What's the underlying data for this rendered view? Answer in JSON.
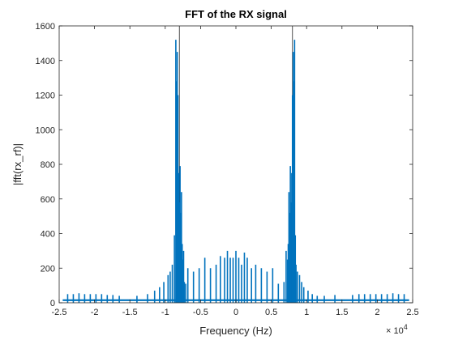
{
  "chart_data": {
    "type": "line",
    "title": "FFT of the RX signal",
    "xlabel": "Frequency (Hz)",
    "ylabel": "|fft(rx_rf)|",
    "x_exponent_label": "× 10",
    "x_exponent_power": "4",
    "x_tick_labels": [
      "-2.5",
      "-2",
      "-1.5",
      "-1",
      "-0.5",
      "0",
      "0.5",
      "1",
      "1.5",
      "2",
      "2.5"
    ],
    "x_ticks": [
      -25000,
      -20000,
      -15000,
      -10000,
      -5000,
      0,
      5000,
      10000,
      15000,
      20000,
      25000
    ],
    "y_tick_labels": [
      "0",
      "200",
      "400",
      "600",
      "800",
      "1000",
      "1200",
      "1400",
      "1600"
    ],
    "y_ticks": [
      0,
      200,
      400,
      600,
      800,
      1000,
      1200,
      1400,
      1600
    ],
    "xlim": [
      -25000,
      25000
    ],
    "ylim": [
      0,
      1600
    ],
    "grid": false,
    "line_color": "#0072BD",
    "carrier_lines": [
      -8000,
      8000
    ],
    "noise_floor": 15,
    "series": [
      {
        "x": [
          -23800,
          -23000,
          -22200,
          -21400,
          -20600,
          -19800,
          -19000,
          -18200,
          -17400,
          -16500,
          -14000,
          -12500,
          -11500,
          -10800,
          -10200,
          -9600,
          -9300,
          -9000,
          -8700,
          -8500,
          -8400,
          -8300,
          -8200,
          -8100,
          -8000,
          -7900,
          -7800,
          -7700,
          -7600,
          -7500,
          -7400,
          -7300,
          -7100,
          -6800,
          -6000,
          -5200,
          -4400,
          -3600,
          -2800,
          -2200,
          -1600,
          -1200,
          -800,
          -400,
          0,
          400,
          800,
          1200,
          1600,
          2200,
          2800,
          3600,
          4400,
          5200,
          6000,
          6800,
          7100,
          7300,
          7400,
          7500,
          7600,
          7700,
          7800,
          7900,
          8000,
          8100,
          8200,
          8300,
          8400,
          8500,
          8700,
          9000,
          9300,
          9600,
          10200,
          10800,
          11500,
          12500,
          14000,
          16500,
          17400,
          18200,
          19000,
          19800,
          20600,
          21400,
          22200,
          23000,
          23800
        ],
        "y": [
          50,
          50,
          55,
          50,
          50,
          50,
          50,
          45,
          45,
          40,
          40,
          50,
          70,
          90,
          120,
          160,
          180,
          220,
          390,
          1520,
          1280,
          1450,
          1200,
          750,
          580,
          790,
          520,
          640,
          340,
          250,
          300,
          120,
          110,
          200,
          180,
          200,
          260,
          200,
          220,
          270,
          260,
          300,
          260,
          260,
          300,
          260,
          220,
          290,
          260,
          200,
          220,
          200,
          180,
          200,
          110,
          120,
          300,
          250,
          340,
          640,
          520,
          790,
          580,
          750,
          1200,
          1450,
          1280,
          1520,
          390,
          220,
          180,
          160,
          120,
          90,
          70,
          50,
          40,
          40,
          45,
          45,
          50,
          50,
          50,
          50,
          50,
          50,
          55,
          50,
          50
        ]
      }
    ]
  }
}
